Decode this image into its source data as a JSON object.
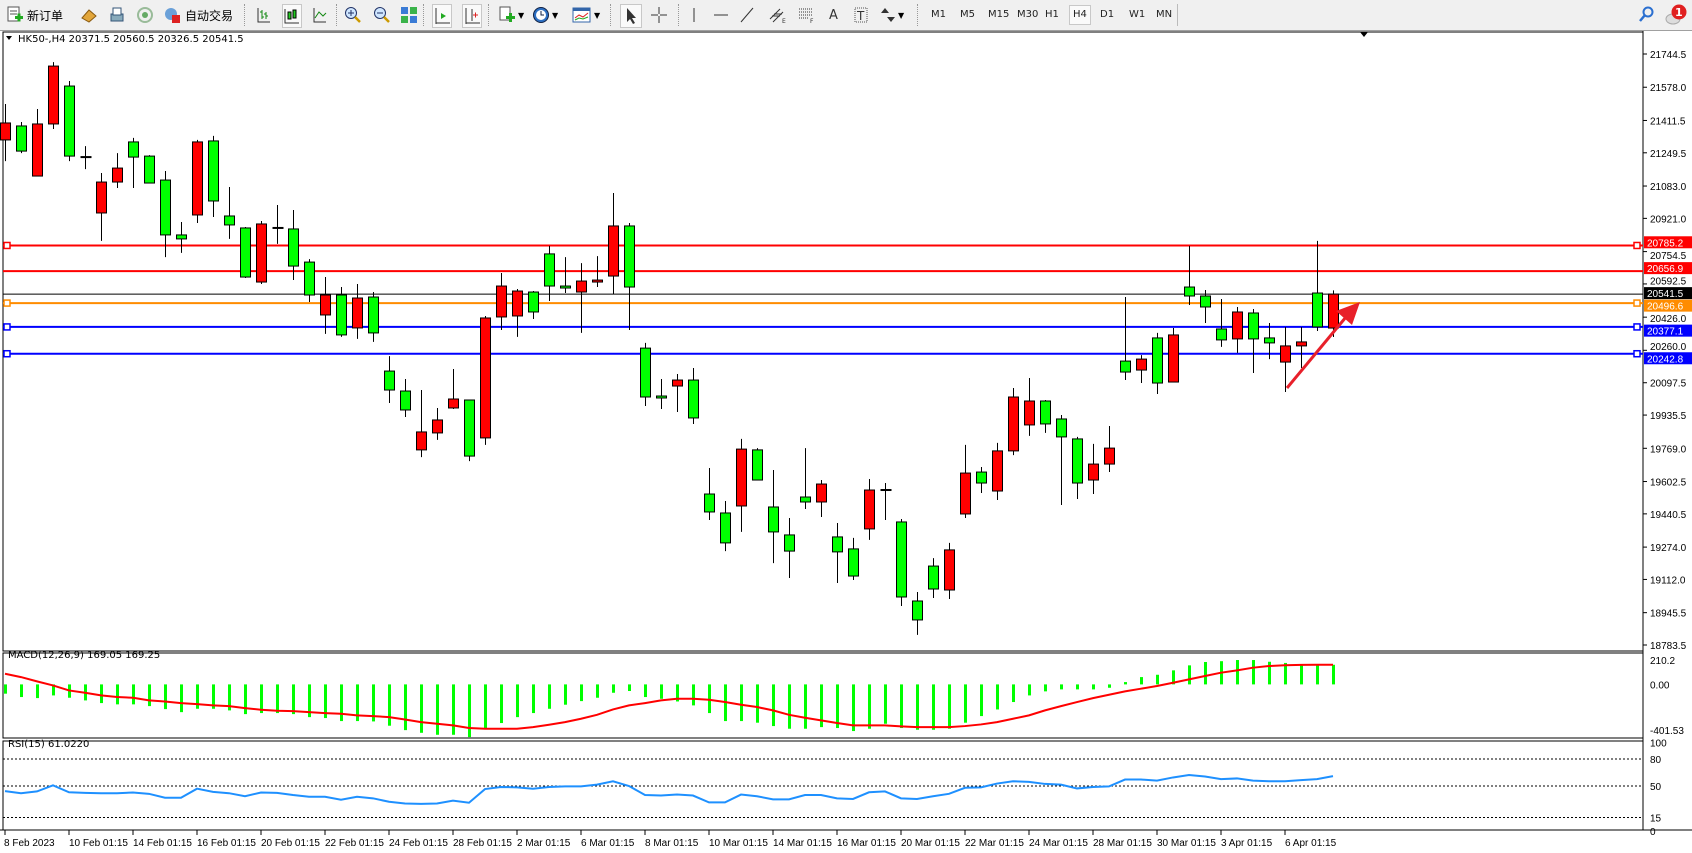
{
  "toolbar": {
    "new_order_label": "新订单",
    "auto_trading_label": "自动交易",
    "text_tool_label": "A",
    "timeframes": [
      "M1",
      "M5",
      "M15",
      "M30",
      "H1",
      "H4",
      "D1",
      "W1",
      "MN"
    ],
    "active_timeframe": "H4",
    "notification_count": "1"
  },
  "chart": {
    "header": "HK50-,H4  20371.5 20560.5 20326.5 20541.5",
    "price_ticks": [
      "21744.5",
      "21578.0",
      "21411.5",
      "21249.5",
      "21083.0",
      "20921.0",
      "20754.5",
      "20592.5",
      "20426.0",
      "20260.0",
      "20097.5",
      "19935.5",
      "19769.0",
      "19602.5",
      "19440.5",
      "19274.0",
      "19112.0",
      "18945.5",
      "18783.5"
    ],
    "price_range": [
      18783.5,
      21744.5
    ],
    "hlines": [
      {
        "price": 20785.2,
        "label": "20785.2",
        "color": "#ff0000",
        "handles": true
      },
      {
        "price": 20656.9,
        "label": "20656.9",
        "color": "#ff0000",
        "handles": false
      },
      {
        "price": 20541.5,
        "label": "20541.5",
        "color": "#000000",
        "handles": false,
        "thin": true
      },
      {
        "price": 20496.6,
        "label": "20496.6",
        "color": "#ff8c00",
        "handles": true
      },
      {
        "price": 20377.1,
        "label": "20377.1",
        "color": "#0000ff",
        "handles": true
      },
      {
        "price": 20242.8,
        "label": "20242.8",
        "color": "#0000ff",
        "handles": true
      }
    ],
    "bull_color": "#ff0000",
    "bear_color": "#00ff00",
    "arrow_color": "#e8202a"
  },
  "macd": {
    "label": "MACD(12,26,9) 169.05 169.25",
    "ticks": [
      "210.2",
      "0.00",
      "-401.53"
    ],
    "tick_values": [
      210.2,
      0,
      -401.53
    ],
    "hist_color": "#00ff00",
    "signal_color": "#ff0000"
  },
  "rsi": {
    "label": "RSI(15) 61.0220",
    "ticks": [
      "100",
      "80",
      "50",
      "15",
      "0"
    ],
    "tick_values": [
      100,
      80,
      50,
      15,
      0
    ],
    "levels": [
      80,
      50,
      15
    ],
    "color": "#1e90ff"
  },
  "date_labels": [
    "8 Feb 2023",
    "10 Feb 01:15",
    "14 Feb 01:15",
    "16 Feb 01:15",
    "20 Feb 01:15",
    "22 Feb 01:15",
    "24 Feb 01:15",
    "28 Feb 01:15",
    "2 Mar 01:15",
    "6 Mar 01:15",
    "8 Mar 01:15",
    "10 Mar 01:15",
    "14 Mar 01:15",
    "16 Mar 01:15",
    "20 Mar 01:15",
    "22 Mar 01:15",
    "24 Mar 01:15",
    "28 Mar 01:15",
    "30 Mar 01:15",
    "3 Apr 01:15",
    "6 Apr 01:15"
  ],
  "chart_data": {
    "type": "candlestick",
    "symbol": "HK50-",
    "timeframe": "H4",
    "ohlc_order": [
      "open",
      "high",
      "low",
      "close"
    ],
    "ylim": [
      18783.5,
      21744.5
    ],
    "candles": [
      [
        21314,
        21494,
        21208,
        21399
      ],
      [
        21384,
        21404,
        21248,
        21258
      ],
      [
        21133,
        21469,
        21133,
        21394
      ],
      [
        21394,
        21704,
        21369,
        21684
      ],
      [
        21584,
        21609,
        21208,
        21233
      ],
      [
        21228,
        21283,
        21168,
        21230
      ],
      [
        20948,
        21148,
        20808,
        21103
      ],
      [
        21103,
        21248,
        21073,
        21173
      ],
      [
        21304,
        21324,
        21073,
        21228
      ],
      [
        21233,
        21238,
        21098,
        21098
      ],
      [
        21113,
        21158,
        20727,
        20838
      ],
      [
        20838,
        20903,
        20748,
        20818
      ],
      [
        20938,
        21314,
        20898,
        21304
      ],
      [
        21309,
        21334,
        20928,
        21008
      ],
      [
        20933,
        21078,
        20818,
        20888
      ],
      [
        20873,
        20878,
        20622,
        20627
      ],
      [
        20602,
        20908,
        20592,
        20893
      ],
      [
        20873,
        20988,
        20793,
        20871
      ],
      [
        20868,
        20963,
        20612,
        20682
      ],
      [
        20702,
        20717,
        20502,
        20537
      ],
      [
        20437,
        20627,
        20342,
        20537
      ],
      [
        20537,
        20577,
        20327,
        20337
      ],
      [
        20372,
        20592,
        20317,
        20522
      ],
      [
        20527,
        20552,
        20302,
        20347
      ],
      [
        20156,
        20231,
        19996,
        20061
      ],
      [
        20056,
        20116,
        19926,
        19961
      ],
      [
        19761,
        20061,
        19725,
        19851
      ],
      [
        19846,
        19971,
        19811,
        19911
      ],
      [
        19971,
        20166,
        19966,
        20016
      ],
      [
        20011,
        20011,
        19705,
        19730
      ],
      [
        19821,
        20432,
        19786,
        20422
      ],
      [
        20427,
        20647,
        20362,
        20582
      ],
      [
        20432,
        20567,
        20327,
        20557
      ],
      [
        20552,
        20557,
        20417,
        20452
      ],
      [
        20743,
        20783,
        20507,
        20582
      ],
      [
        20582,
        20727,
        20547,
        20572
      ],
      [
        20552,
        20697,
        20347,
        20607
      ],
      [
        20602,
        20732,
        20577,
        20612
      ],
      [
        20632,
        21048,
        20542,
        20883
      ],
      [
        20883,
        20898,
        20362,
        20577
      ],
      [
        20271,
        20297,
        19981,
        20026
      ],
      [
        20031,
        20116,
        19966,
        20021
      ],
      [
        20081,
        20141,
        19951,
        20111
      ],
      [
        20111,
        20171,
        19891,
        19921
      ],
      [
        19540,
        19670,
        19410,
        19450
      ],
      [
        19445,
        19505,
        19254,
        19295
      ],
      [
        19480,
        19816,
        19350,
        19765
      ],
      [
        19761,
        19770,
        19610,
        19610
      ],
      [
        19475,
        19660,
        19194,
        19350
      ],
      [
        19335,
        19420,
        19119,
        19254
      ],
      [
        19525,
        19770,
        19465,
        19500
      ],
      [
        19500,
        19610,
        19425,
        19590
      ],
      [
        19325,
        19395,
        19094,
        19250
      ],
      [
        19265,
        19320,
        19109,
        19129
      ],
      [
        19365,
        19615,
        19310,
        19560
      ],
      [
        19560,
        19595,
        19410,
        19558
      ],
      [
        19400,
        19415,
        18979,
        19024
      ],
      [
        19004,
        19049,
        18834,
        18909
      ],
      [
        19179,
        19219,
        19019,
        19064
      ],
      [
        19059,
        19295,
        19014,
        19260
      ],
      [
        19440,
        19786,
        19420,
        19645
      ],
      [
        19650,
        19675,
        19545,
        19595
      ],
      [
        19555,
        19796,
        19510,
        19756
      ],
      [
        19756,
        20071,
        19735,
        20026
      ],
      [
        19886,
        20121,
        19831,
        20006
      ],
      [
        20006,
        20011,
        19846,
        19891
      ],
      [
        19916,
        19936,
        19485,
        19826
      ],
      [
        19816,
        19826,
        19515,
        19595
      ],
      [
        19610,
        19791,
        19540,
        19690
      ],
      [
        19690,
        19881,
        19650,
        19770
      ],
      [
        20206,
        20527,
        20111,
        20151
      ],
      [
        20161,
        20236,
        20096,
        20216
      ],
      [
        20322,
        20347,
        20041,
        20096
      ],
      [
        20101,
        20372,
        20101,
        20337
      ],
      [
        20577,
        20783,
        20487,
        20532
      ],
      [
        20532,
        20562,
        20397,
        20477
      ],
      [
        20367,
        20517,
        20277,
        20312
      ],
      [
        20317,
        20477,
        20247,
        20452
      ],
      [
        20447,
        20467,
        20146,
        20317
      ],
      [
        20322,
        20397,
        20216,
        20297
      ],
      [
        20201,
        20377,
        20051,
        20282
      ],
      [
        20282,
        20377,
        20171,
        20302
      ],
      [
        20547,
        20808,
        20357,
        20377
      ],
      [
        20371.5,
        20560.5,
        20326.5,
        20541.5
      ]
    ],
    "macd_histogram": [
      -80,
      -109,
      -118,
      -95,
      -115,
      -138,
      -161,
      -172,
      -172,
      -187,
      -213,
      -239,
      -210,
      -210,
      -224,
      -256,
      -247,
      -247,
      -256,
      -282,
      -290,
      -316,
      -316,
      -319,
      -356,
      -394,
      -417,
      -434,
      -434,
      -454,
      -382,
      -333,
      -282,
      -247,
      -210,
      -175,
      -144,
      -115,
      -72,
      -57,
      -109,
      -124,
      -147,
      -181,
      -247,
      -316,
      -316,
      -330,
      -359,
      -382,
      -382,
      -368,
      -376,
      -402,
      -382,
      -339,
      -376,
      -391,
      -391,
      -382,
      -330,
      -273,
      -216,
      -152,
      -95,
      -60,
      -43,
      -43,
      -43,
      -29,
      20,
      63,
      83,
      121,
      164,
      193,
      200,
      210,
      210,
      195,
      185,
      175,
      172,
      169.05
    ],
    "macd_signal": [
      92,
      63,
      26,
      -9,
      -52,
      -72,
      -95,
      -109,
      -115,
      -138,
      -147,
      -161,
      -170,
      -181,
      -187,
      -204,
      -218,
      -227,
      -230,
      -239,
      -247,
      -253,
      -267,
      -273,
      -282,
      -302,
      -325,
      -339,
      -353,
      -376,
      -382,
      -382,
      -382,
      -368,
      -348,
      -325,
      -296,
      -262,
      -216,
      -181,
      -161,
      -138,
      -124,
      -124,
      -132,
      -152,
      -175,
      -195,
      -224,
      -262,
      -287,
      -310,
      -333,
      -353,
      -353,
      -353,
      -362,
      -368,
      -368,
      -368,
      -359,
      -345,
      -325,
      -296,
      -267,
      -224,
      -187,
      -152,
      -118,
      -89,
      -60,
      -37,
      -14,
      14,
      43,
      72,
      101,
      121,
      144,
      158,
      165,
      168,
      169,
      169.25
    ],
    "rsi": [
      44.3,
      42,
      44,
      50.8,
      43,
      42.4,
      42,
      42,
      42.8,
      41.3,
      37,
      37,
      47,
      43.5,
      42,
      38.6,
      42.8,
      42.4,
      40,
      38,
      38,
      34.8,
      38,
      36.3,
      32.5,
      30.6,
      30.2,
      30.6,
      33.7,
      31.4,
      46.6,
      48.9,
      48.5,
      47,
      48.9,
      49.6,
      49.6,
      51.5,
      55.3,
      50,
      40,
      39.4,
      40.5,
      39.4,
      31.8,
      31.8,
      40.5,
      38.6,
      35.2,
      35.2,
      40,
      40,
      36.3,
      35.6,
      43,
      44,
      36.3,
      35.6,
      38.6,
      41.3,
      48,
      48.5,
      52.7,
      55.3,
      54.6,
      52.3,
      51.5,
      47.3,
      48.9,
      49.6,
      57.2,
      57.2,
      56,
      59.5,
      62.2,
      60.6,
      57.6,
      58.4,
      56,
      55.3,
      55.3,
      56.5,
      57.6,
      61.02
    ],
    "date_label_every_n_bars": 4
  }
}
